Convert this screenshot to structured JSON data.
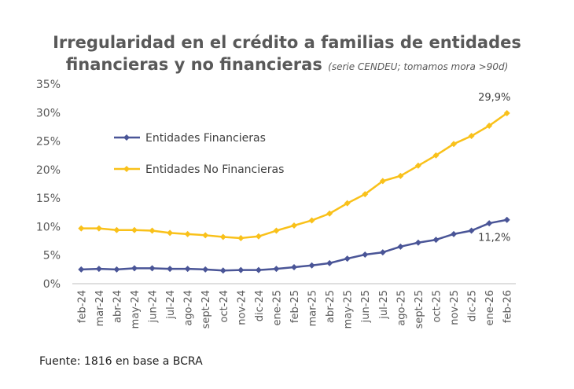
{
  "chart_data": {
    "type": "line",
    "title": "Irregularidad en el crédito a familias de entidades financieras y no financieras",
    "title_line1": "Irregularidad en el crédito a familias de entidades",
    "title_line2": "financieras y no financieras",
    "subtitle": "(serie CENDEU; tomamos mora >90d)",
    "categories": [
      "feb-24",
      "mar-24",
      "abr-24",
      "may-24",
      "jun-24",
      "jul-24",
      "ago-24",
      "sept-24",
      "oct-24",
      "nov-24",
      "dic-24",
      "ene-25",
      "feb-25",
      "mar-25",
      "abr-25",
      "may-25",
      "jun-25",
      "jul-25",
      "ago-25",
      "sept-25",
      "oct-25",
      "nov-25",
      "dic-25",
      "ene-26",
      "feb-26"
    ],
    "ylim": [
      0,
      35
    ],
    "yticks": [
      0,
      5,
      10,
      15,
      20,
      25,
      30,
      35
    ],
    "ytick_labels": [
      "0%",
      "5%",
      "10%",
      "15%",
      "20%",
      "25%",
      "30%",
      "35%"
    ],
    "grid": false,
    "legend_position": "upper-left-inside",
    "series": [
      {
        "name": "Entidades Financieras",
        "color": "#4a5597",
        "values": [
          2.5,
          2.6,
          2.5,
          2.7,
          2.7,
          2.6,
          2.6,
          2.5,
          2.3,
          2.4,
          2.4,
          2.6,
          2.9,
          3.2,
          3.6,
          4.4,
          5.1,
          5.5,
          6.5,
          7.2,
          7.7,
          8.7,
          9.3,
          10.6,
          11.2
        ],
        "end_label": "11,2%"
      },
      {
        "name": "Entidades No Financieras",
        "color": "#f9c11a",
        "values": [
          9.7,
          9.7,
          9.4,
          9.4,
          9.3,
          8.9,
          8.7,
          8.5,
          8.2,
          8.0,
          8.3,
          9.3,
          10.2,
          11.1,
          12.3,
          14.1,
          15.7,
          18.0,
          18.9,
          20.7,
          22.5,
          24.5,
          25.9,
          27.7,
          29.9
        ],
        "end_label": "29,9%"
      }
    ]
  },
  "source_text": "Fuente: 1816 en base a BCRA"
}
